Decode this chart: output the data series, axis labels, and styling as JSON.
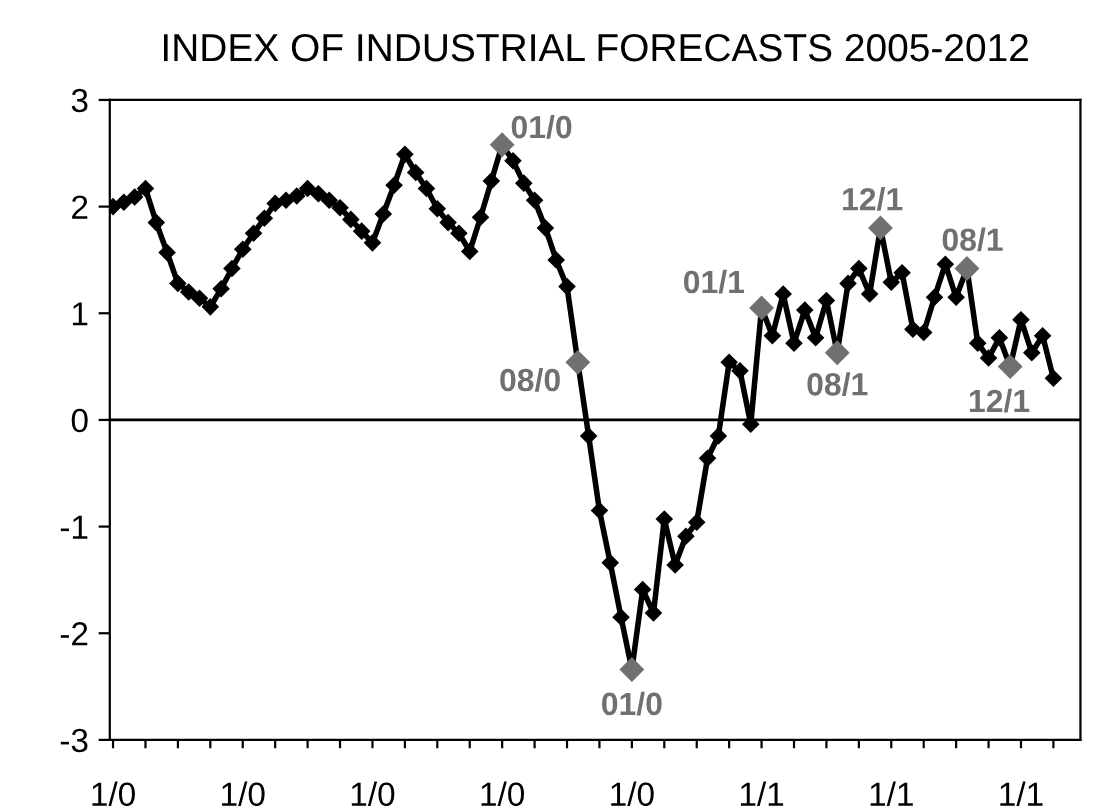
{
  "chart_data": {
    "type": "line",
    "title": "INDEX OF INDUSTRIAL FORECASTS 2005-2012",
    "categories": [
      "1/0",
      null,
      null,
      null,
      null,
      null,
      null,
      null,
      null,
      null,
      null,
      null,
      "1/0",
      null,
      null,
      null,
      null,
      null,
      null,
      null,
      null,
      null,
      null,
      null,
      "1/0",
      null,
      null,
      null,
      null,
      null,
      null,
      null,
      null,
      null,
      null,
      null,
      "1/0",
      null,
      null,
      null,
      null,
      null,
      null,
      null,
      null,
      null,
      null,
      null,
      "1/0",
      null,
      null,
      null,
      null,
      null,
      null,
      null,
      null,
      null,
      null,
      null,
      "1/1",
      null,
      null,
      null,
      null,
      null,
      null,
      null,
      null,
      null,
      null,
      null,
      "1/1",
      null,
      null,
      null,
      null,
      null,
      null,
      null,
      null,
      null,
      null,
      null,
      "1/1",
      null,
      null,
      null
    ],
    "series": [
      {
        "color": "#000000",
        "marker": "diamond",
        "values": [
          2.0,
          2.04,
          2.09,
          2.17,
          1.85,
          1.57,
          1.28,
          1.2,
          1.14,
          1.06,
          1.23,
          1.42,
          1.6,
          1.75,
          1.89,
          2.03,
          2.06,
          2.1,
          2.17,
          2.12,
          2.06,
          1.99,
          1.88,
          1.77,
          1.66,
          1.93,
          2.2,
          2.49,
          2.32,
          2.17,
          1.98,
          1.85,
          1.75,
          1.58,
          1.9,
          2.24,
          2.58,
          2.43,
          2.22,
          2.06,
          1.8,
          1.5,
          1.25,
          0.54,
          -0.15,
          -0.85,
          -1.34,
          -1.85,
          -2.34,
          -1.59,
          -1.81,
          -0.93,
          -1.36,
          -1.09,
          -0.96,
          -0.36,
          -0.15,
          0.54,
          0.46,
          -0.04,
          1.05,
          0.79,
          1.18,
          0.72,
          1.03,
          0.77,
          1.12,
          0.63,
          1.28,
          1.42,
          1.18,
          1.8,
          1.29,
          1.38,
          0.85,
          0.82,
          1.15,
          1.46,
          1.15,
          1.42,
          0.72,
          0.58,
          0.77,
          0.5,
          0.94,
          0.63,
          0.79,
          0.39
        ],
        "colors": [
          "#000000",
          "#000000",
          "#000000",
          "#000000",
          "#000000",
          "#000000",
          "#000000",
          "#000000",
          "#000000",
          "#000000",
          "#000000",
          "#000000",
          "#000000",
          "#000000",
          "#000000",
          "#000000",
          "#000000",
          "#000000",
          "#000000",
          "#000000",
          "#000000",
          "#000000",
          "#000000",
          "#000000",
          "#000000",
          "#000000",
          "#000000",
          "#000000",
          "#000000",
          "#000000",
          "#000000",
          "#000000",
          "#000000",
          "#000000",
          "#000000",
          "#000000",
          "#707070",
          "#000000",
          "#000000",
          "#000000",
          "#000000",
          "#000000",
          "#000000",
          "#707070",
          "#000000",
          "#000000",
          "#000000",
          "#000000",
          "#707070",
          "#000000",
          "#000000",
          "#000000",
          "#000000",
          "#000000",
          "#000000",
          "#000000",
          "#000000",
          "#000000",
          "#000000",
          "#000000",
          "#707070",
          "#000000",
          "#000000",
          "#000000",
          "#000000",
          "#000000",
          "#000000",
          "#707070",
          "#000000",
          "#000000",
          "#000000",
          "#707070",
          "#000000",
          "#000000",
          "#000000",
          "#000000",
          "#000000",
          "#000000",
          "#000000",
          "#707070",
          "#000000",
          "#000000",
          "#000000",
          "#707070",
          "#000000",
          "#000000",
          "#000000",
          "#000000"
        ]
      }
    ],
    "annotations": [
      "01/0",
      "08/0",
      "01/0",
      "01/1",
      "08/1",
      "12/1",
      "08/1",
      "12/1"
    ],
    "ref_lines": [
      {
        "axis": "y",
        "value": 0,
        "color": "#000000",
        "line_style": "solid"
      }
    ],
    "ylim": [
      -3,
      3
    ],
    "yticks": [
      -3,
      -2,
      -1,
      0,
      1,
      2,
      3
    ],
    "grid": false,
    "legend": false
  }
}
